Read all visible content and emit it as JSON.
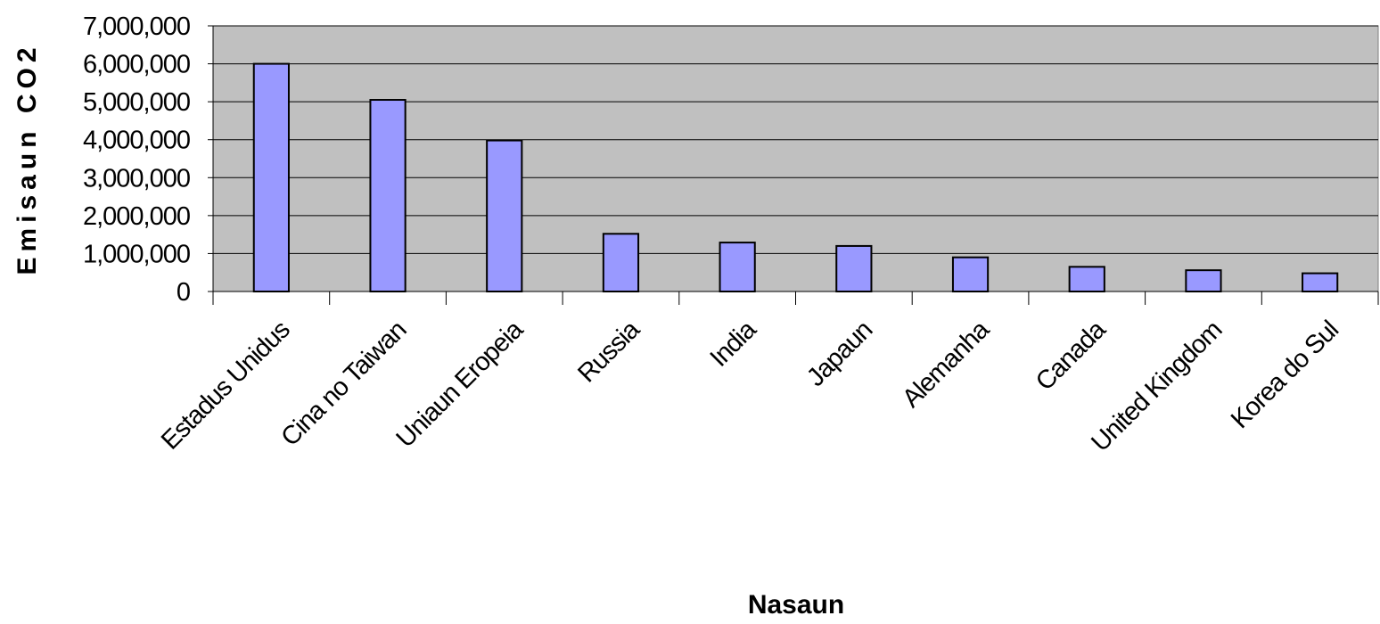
{
  "chart_data": {
    "type": "bar",
    "title": "",
    "xlabel": "Nasaun",
    "ylabel": "Emisaun CO2",
    "ylim": [
      0,
      7000000
    ],
    "yticks": [
      "0",
      "1,000,000",
      "2,000,000",
      "3,000,000",
      "4,000,000",
      "5,000,000",
      "6,000,000",
      "7,000,000"
    ],
    "ytick_values": [
      0,
      1000000,
      2000000,
      3000000,
      4000000,
      5000000,
      6000000,
      7000000
    ],
    "categories": [
      "Estadus Unidus",
      "Cina no Taiwan",
      "Uniaun Eropeia",
      "Russia",
      "India",
      "Japaun",
      "Alemanha",
      "Canada",
      "United Kingdom",
      "Korea do Sul"
    ],
    "values": [
      6000000,
      5050000,
      3980000,
      1520000,
      1290000,
      1200000,
      900000,
      650000,
      560000,
      480000
    ],
    "grid": true,
    "legend": "none",
    "colors": {
      "bar_fill": "#9999ff",
      "bar_stroke": "#000000",
      "plot_background": "#c0c0c0",
      "gridline": "#000000"
    }
  }
}
